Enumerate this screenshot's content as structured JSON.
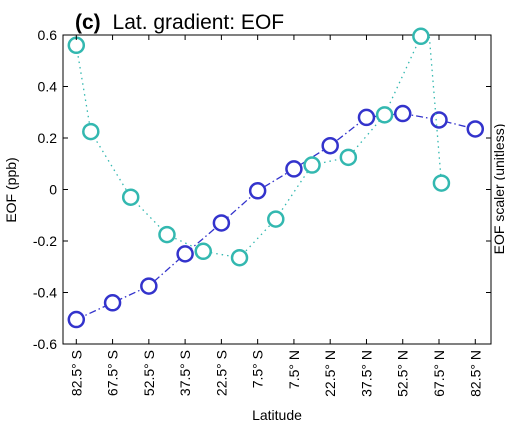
{
  "chart_data": {
    "type": "line",
    "title_prefix": "(c)",
    "title": "Lat. gradient: EOF",
    "xlabel": "Latitude",
    "ylabel": "EOF (ppb)",
    "y2label": "EOF scaler (unitless)",
    "ylim": [
      -0.6,
      0.6
    ],
    "yticks": [
      -0.6,
      -0.4,
      -0.2,
      0,
      0.2,
      0.4,
      0.6
    ],
    "ytick_labels": [
      "-0.6",
      "-0.4",
      "-0.2",
      "0",
      "0.2",
      "0.4",
      "0.6"
    ],
    "x": [
      -82.5,
      -67.5,
      -52.5,
      -37.5,
      -22.5,
      -7.5,
      7.5,
      22.5,
      37.5,
      52.5,
      67.5,
      82.5
    ],
    "xlim": [
      -88,
      89
    ],
    "xtick_labels": [
      "82.5° S",
      "67.5° S",
      "52.5° S",
      "37.5° S",
      "22.5° S",
      "7.5° S",
      "7.5° N",
      "22.5° N",
      "37.5° N",
      "52.5° N",
      "67.5° N",
      "82.5° N"
    ],
    "grid": false,
    "series": [
      {
        "color": "#3333cc",
        "style": "dash-dot",
        "values": [
          -0.505,
          -0.44,
          -0.375,
          -0.25,
          -0.13,
          -0.005,
          0.08,
          0.17,
          0.28,
          0.295,
          0.27,
          0.235
        ]
      },
      {
        "color": "#33b8b0",
        "style": "dotted",
        "x": [
          -82.5,
          -76.5,
          -60,
          -45,
          -30,
          -15,
          0,
          15,
          30,
          45,
          60,
          63.5,
          68.5
        ],
        "values": [
          0.56,
          0.225,
          -0.03,
          -0.175,
          -0.24,
          -0.265,
          -0.115,
          0.095,
          0.125,
          0.29,
          0.595,
          0.595,
          0.025
        ],
        "marker_indices": [
          0,
          1,
          2,
          3,
          4,
          5,
          6,
          7,
          8,
          9,
          10,
          12
        ]
      }
    ]
  }
}
